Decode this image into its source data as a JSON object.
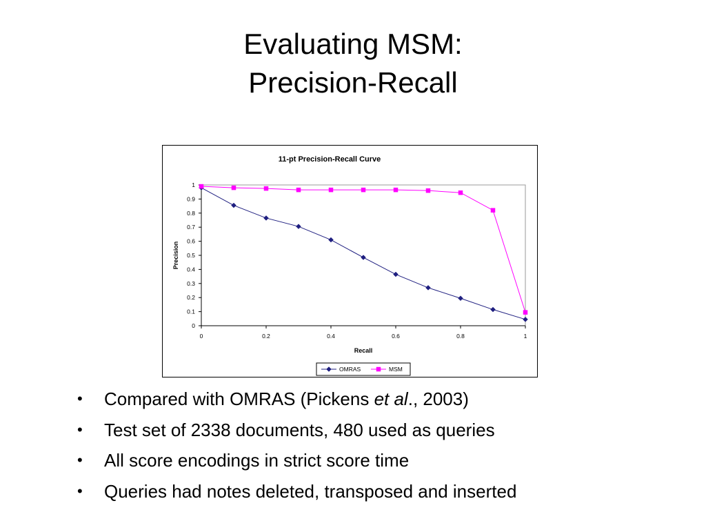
{
  "slide": {
    "title_line1": "Evaluating MSM:",
    "title_line2": "Precision-Recall"
  },
  "chart_data": {
    "type": "line",
    "title": "11-pt Precision-Recall Curve",
    "xlabel": "Recall",
    "ylabel": "Precision",
    "xlim": [
      0,
      1
    ],
    "ylim": [
      0,
      1
    ],
    "x_ticks": [
      "0",
      "0.2",
      "0.4",
      "0.6",
      "0.8",
      "1"
    ],
    "x_tick_values": [
      0,
      0.2,
      0.4,
      0.6,
      0.8,
      1
    ],
    "y_ticks": [
      "0",
      "0.1",
      "0.2",
      "0.3",
      "0.4",
      "0.5",
      "0.6",
      "0.7",
      "0.8",
      "0.9",
      "1"
    ],
    "y_tick_values": [
      0,
      0.1,
      0.2,
      0.3,
      0.4,
      0.5,
      0.6,
      0.7,
      0.8,
      0.9,
      1
    ],
    "grid": false,
    "legend_position": "bottom",
    "x": [
      0,
      0.1,
      0.2,
      0.3,
      0.4,
      0.5,
      0.6,
      0.7,
      0.8,
      0.9,
      1.0
    ],
    "series": [
      {
        "name": "OMRAS",
        "color": "#1f1f80",
        "marker": "diamond",
        "values": [
          0.98,
          0.855,
          0.765,
          0.705,
          0.61,
          0.485,
          0.365,
          0.27,
          0.195,
          0.115,
          0.045
        ]
      },
      {
        "name": "MSM",
        "color": "#ff00ff",
        "marker": "square",
        "values": [
          0.99,
          0.98,
          0.975,
          0.965,
          0.965,
          0.965,
          0.965,
          0.96,
          0.945,
          0.82,
          0.095
        ]
      }
    ]
  },
  "bullets": {
    "b1_pre": "Compared with OMRAS (Pickens ",
    "b1_em": "et al",
    "b1_post": "., 2003)",
    "b2": "Test set of 2338 documents, 480 used as queries",
    "b3": "All score encodings in strict score time",
    "b4": "Queries had notes deleted, transposed and inserted",
    "marker": "•"
  }
}
